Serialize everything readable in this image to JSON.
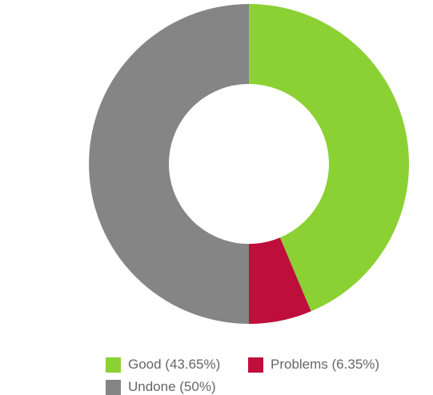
{
  "chart_data": {
    "type": "pie",
    "variant": "donut",
    "slices": [
      {
        "label": "Good",
        "value": 43.65,
        "color": "#8bd134"
      },
      {
        "label": "Problems",
        "value": 6.35,
        "color": "#be0f3c"
      },
      {
        "label": "Undone",
        "value": 50,
        "color": "#858585"
      }
    ],
    "legend": {
      "placement": "bottom",
      "entries": [
        {
          "text": "Good (43.65%)",
          "color": "#8bd134"
        },
        {
          "text": "Problems (6.35%)",
          "color": "#be0f3c"
        },
        {
          "text": "Undone (50%)",
          "color": "#858585"
        }
      ]
    }
  }
}
